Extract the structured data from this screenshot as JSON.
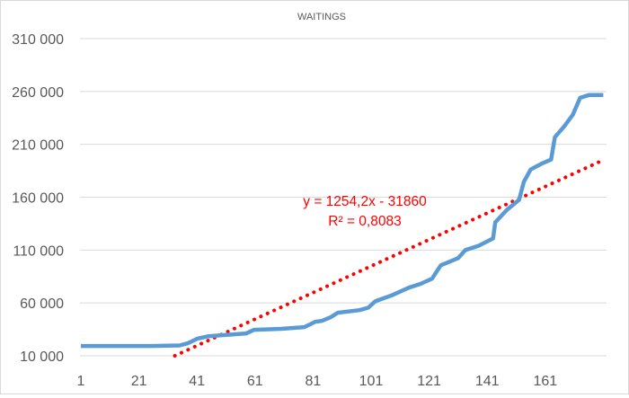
{
  "chart_data": {
    "type": "line",
    "title": "WAITINGS",
    "xlabel": "",
    "ylabel": "",
    "xlim": [
      1,
      181
    ],
    "ylim": [
      10000,
      310000
    ],
    "x_ticks": [
      "1",
      "21",
      "41",
      "61",
      "81",
      "101",
      "121",
      "141",
      "161"
    ],
    "x_tick_values": [
      1,
      21,
      41,
      61,
      81,
      101,
      121,
      141,
      161
    ],
    "y_ticks": [
      "10 000",
      "60 000",
      "110 000",
      "160 000",
      "210 000",
      "260 000",
      "310 000"
    ],
    "y_tick_values": [
      10000,
      60000,
      110000,
      160000,
      210000,
      260000,
      310000
    ],
    "grid": true,
    "series": [
      {
        "name": "Waitings",
        "color": "#5b9bd5",
        "points": [
          [
            1,
            19300
          ],
          [
            25,
            19300
          ],
          [
            35,
            19800
          ],
          [
            38,
            22000
          ],
          [
            41,
            26100
          ],
          [
            45,
            28500
          ],
          [
            58,
            31200
          ],
          [
            60.7,
            34600
          ],
          [
            70,
            35500
          ],
          [
            78,
            37100
          ],
          [
            81.8,
            42200
          ],
          [
            84,
            43000
          ],
          [
            87,
            46400
          ],
          [
            89.5,
            50700
          ],
          [
            97,
            53200
          ],
          [
            100,
            55500
          ],
          [
            102.5,
            61700
          ],
          [
            108,
            67000
          ],
          [
            114,
            74400
          ],
          [
            118,
            78000
          ],
          [
            122,
            82900
          ],
          [
            125,
            95600
          ],
          [
            131,
            102400
          ],
          [
            133.5,
            110000
          ],
          [
            138,
            114000
          ],
          [
            143,
            121000
          ],
          [
            143.8,
            136300
          ],
          [
            147.8,
            148100
          ],
          [
            152,
            157500
          ],
          [
            153.6,
            174400
          ],
          [
            156,
            186300
          ],
          [
            160,
            192000
          ],
          [
            163,
            195600
          ],
          [
            164.3,
            216800
          ],
          [
            167.5,
            226900
          ],
          [
            170.5,
            238000
          ],
          [
            173,
            254000
          ],
          [
            176,
            256600
          ],
          [
            181,
            256600
          ]
        ]
      }
    ],
    "trendline": {
      "type": "linear",
      "slope": 1254.2,
      "intercept": -31860,
      "color": "#ff0000",
      "equation_label": "y = 1254,2x - 31860",
      "r2_label": "R² = 0,8083"
    }
  }
}
